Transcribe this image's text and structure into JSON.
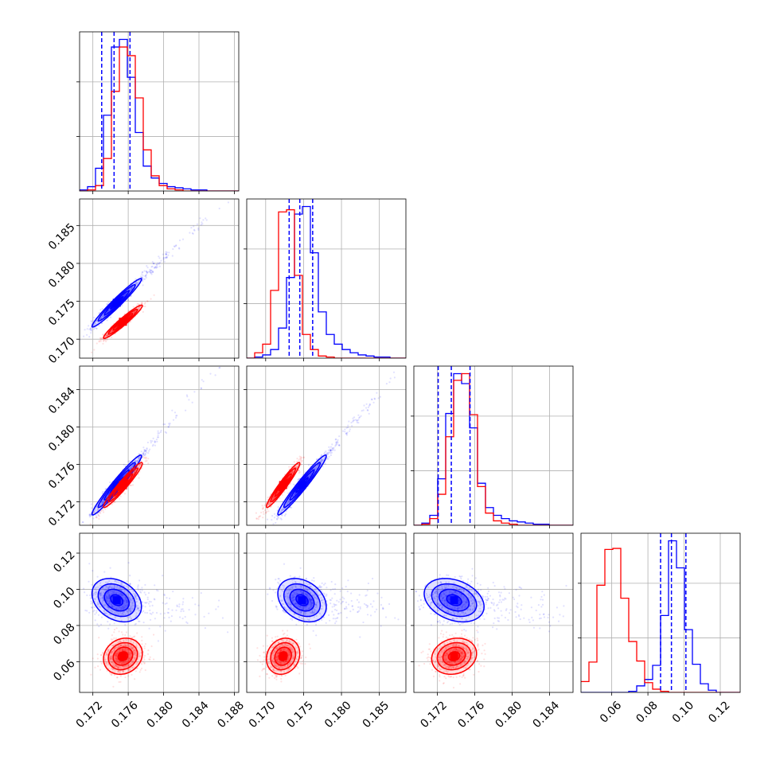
{
  "chart_data": {
    "type": "corner",
    "title": "",
    "parameters": [
      "",
      "",
      "",
      ""
    ],
    "grid": true,
    "colors": {
      "blue": "#0000ff",
      "red": "#ff0000"
    },
    "ranges": [
      [
        0.1705,
        0.1885
      ],
      [
        0.1675,
        0.1885
      ],
      [
        0.1695,
        0.1865
      ],
      [
        0.043,
        0.131
      ]
    ],
    "ticks": [
      [
        0.172,
        0.176,
        0.18,
        0.184,
        0.188
      ],
      [
        0.17,
        0.175,
        0.18,
        0.185
      ],
      [
        0.172,
        0.176,
        0.18,
        0.184
      ],
      [
        0.06,
        0.08,
        0.1,
        0.12
      ]
    ],
    "tick_labels": [
      [
        "0.172",
        "0.176",
        "0.180",
        "0.184",
        "0.188"
      ],
      [
        "0.170",
        "0.175",
        "0.180",
        "0.185"
      ],
      [
        "0.172",
        "0.176",
        "0.180",
        "0.184"
      ],
      [
        "0.06",
        "0.08",
        "0.10",
        "0.12"
      ]
    ],
    "quantiles_blue": [
      [
        0.173,
        0.1744,
        0.1762
      ],
      [
        0.1731,
        0.1745,
        0.1762
      ],
      [
        0.1721,
        0.1735,
        0.1755
      ],
      [
        0.087,
        0.093,
        0.101
      ]
    ],
    "series": [
      {
        "color": "blue",
        "mean": [
          0.1747,
          0.1748,
          0.1738,
          0.094
        ],
        "std": [
          0.0014,
          0.0016,
          0.0016,
          0.006
        ],
        "correlation": [
          [
            1.0,
            0.97,
            0.97,
            -0.3
          ],
          [
            0.97,
            1.0,
            0.97,
            -0.3
          ],
          [
            0.97,
            0.97,
            1.0,
            -0.3
          ],
          [
            -0.3,
            -0.3,
            -0.3,
            1.0
          ]
        ],
        "histograms": [
          {
            "bin_start": 0.1705,
            "bin_width": 0.0009,
            "counts": [
              1,
              4,
              21,
              70,
              133,
              140,
              105,
              54,
              23,
              12,
              7,
              4,
              3,
              2,
              1,
              1,
              0,
              0,
              0,
              0
            ]
          },
          {
            "bin_start": 0.1675,
            "bin_width": 0.00105,
            "counts": [
              0,
              1,
              3,
              8,
              28,
              75,
              134,
              141,
              98,
              43,
              22,
              13,
              8,
              5,
              3,
              2,
              1,
              1,
              0,
              0
            ]
          },
          {
            "bin_start": 0.1695,
            "bin_width": 0.00085,
            "counts": [
              0,
              2,
              9,
              42,
              101,
              137,
              128,
              88,
              38,
              16,
              9,
              6,
              4,
              3,
              2,
              1,
              1,
              0,
              0,
              0
            ]
          },
          {
            "bin_start": 0.043,
            "bin_width": 0.0044,
            "counts": [
              0,
              0,
              0,
              0,
              0,
              0,
              1,
              6,
              12,
              25,
              71,
              140,
              115,
              58,
              26,
              8,
              2,
              0,
              0,
              0
            ]
          }
        ]
      },
      {
        "color": "red",
        "mean": [
          0.1754,
          0.1723,
          0.1738,
          0.063
        ],
        "std": [
          0.0011,
          0.0011,
          0.0012,
          0.005
        ],
        "correlation": [
          [
            1.0,
            0.96,
            0.96,
            0.15
          ],
          [
            0.96,
            1.0,
            0.96,
            0.15
          ],
          [
            0.96,
            0.96,
            1.0,
            0.15
          ],
          [
            0.15,
            0.15,
            0.15,
            1.0
          ]
        ],
        "histograms": [
          {
            "bin_start": 0.1705,
            "bin_width": 0.0009,
            "counts": [
              0,
              1,
              5,
              30,
              92,
              133,
              125,
              86,
              38,
              14,
              5,
              2,
              1,
              0,
              0,
              0,
              0,
              0,
              0,
              0
            ]
          },
          {
            "bin_start": 0.1675,
            "bin_width": 0.00105,
            "counts": [
              0,
              5,
              13,
              63,
              136,
              138,
              77,
              22,
              8,
              2,
              1,
              0,
              0,
              0,
              0,
              0,
              0,
              0,
              0,
              0
            ]
          },
          {
            "bin_start": 0.1695,
            "bin_width": 0.00085,
            "counts": [
              0,
              1,
              6,
              28,
              80,
              131,
              137,
              100,
              35,
              11,
              4,
              2,
              1,
              0,
              0,
              0,
              0,
              0,
              0,
              0
            ]
          },
          {
            "bin_start": 0.043,
            "bin_width": 0.0044,
            "counts": [
              10,
              28,
              99,
              132,
              133,
              87,
              47,
              29,
              9,
              3,
              1,
              0,
              0,
              0,
              0,
              0,
              0,
              0,
              0,
              0
            ]
          }
        ]
      }
    ]
  }
}
